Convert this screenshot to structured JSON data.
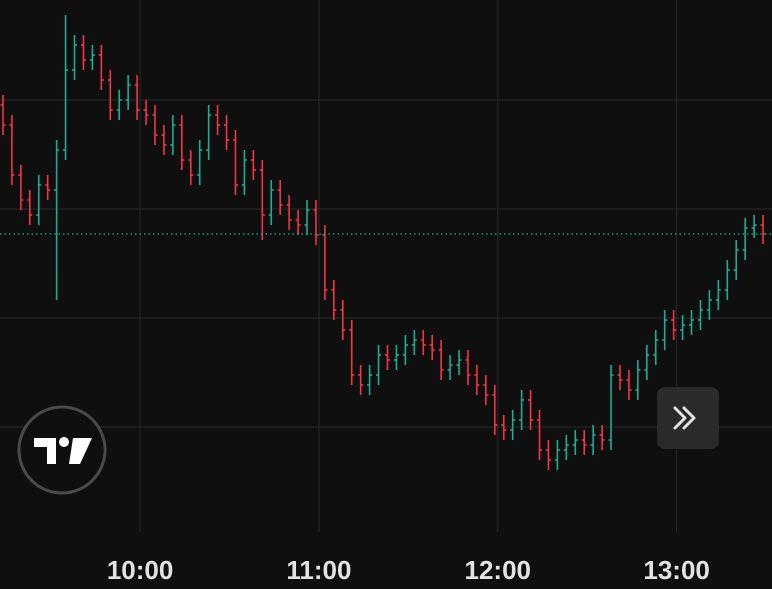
{
  "chart_data": {
    "type": "ohlc",
    "x": [
      554,
      557,
      560,
      563,
      566,
      569,
      572,
      575,
      578,
      581,
      584,
      587,
      590,
      593,
      596,
      599,
      602,
      605,
      608,
      611,
      614,
      617,
      620,
      623,
      626,
      629,
      632,
      635,
      638,
      641,
      644,
      647,
      650,
      653,
      656,
      659,
      662,
      665,
      668,
      671,
      674,
      677,
      680,
      683,
      686,
      689,
      692,
      695,
      698,
      701,
      704,
      707,
      710,
      713,
      716,
      719,
      722,
      725,
      728,
      731,
      734,
      737,
      740,
      743,
      746,
      749,
      752,
      755,
      758,
      761,
      764,
      767,
      770,
      773,
      776,
      779,
      782,
      785,
      788,
      791,
      794,
      797,
      800,
      803,
      806,
      809
    ],
    "open": [
      44,
      42,
      37,
      34.5,
      33,
      36,
      35.5,
      39.5,
      47.5,
      50,
      48.5,
      49,
      46.5,
      43.5,
      44.5,
      46,
      43.5,
      43,
      41,
      40,
      42,
      38.5,
      37,
      39.5,
      43,
      42,
      40.5,
      36,
      38.5,
      37.5,
      33,
      35.5,
      34,
      32.5,
      32,
      33.5,
      31,
      25.5,
      23.5,
      21.5,
      17,
      16,
      17,
      19,
      18.5,
      19,
      20,
      20.5,
      20,
      19.5,
      17.5,
      18,
      18.5,
      17,
      16,
      15,
      12,
      11.5,
      12.5,
      14.5,
      12.5,
      9.5,
      8.5,
      9.5,
      10,
      10.5,
      10,
      11,
      10.5,
      17,
      16.5,
      15.5,
      17.5,
      19,
      20.5,
      22.5,
      21.5,
      22,
      22.5,
      23.5,
      24.5,
      25.5,
      27.5,
      29.5,
      31.7,
      32
    ],
    "high": [
      45,
      43,
      38,
      35.5,
      37,
      37,
      40.5,
      53,
      51,
      51,
      50,
      50,
      47.5,
      45.5,
      47,
      47,
      44.5,
      44,
      42,
      43,
      43,
      39.5,
      40.5,
      44,
      44,
      43,
      41.5,
      39.5,
      39.5,
      38.5,
      36.5,
      36.5,
      35,
      33.5,
      34.5,
      34.5,
      32,
      26.5,
      24.5,
      22.5,
      18,
      18,
      20,
      20,
      20,
      21,
      21.5,
      21.5,
      21,
      20.5,
      19,
      19.5,
      19.5,
      18,
      17,
      16,
      13,
      13.5,
      15.5,
      15.5,
      13.5,
      10.5,
      10.5,
      11,
      11.5,
      11.5,
      12,
      12,
      18,
      18,
      17.5,
      18.5,
      20,
      21.5,
      23.5,
      23.5,
      23,
      23.5,
      24.5,
      25.5,
      26.5,
      28.5,
      30.5,
      32.7,
      33,
      33
    ],
    "low": [
      41,
      36,
      33.5,
      32,
      32,
      34.5,
      24.5,
      38.5,
      46.5,
      47.5,
      47.5,
      45.5,
      42.5,
      42.5,
      43.5,
      42.5,
      42,
      40,
      39,
      39,
      37.5,
      36,
      36,
      38.5,
      41,
      39.5,
      35,
      35,
      36.5,
      30.5,
      32,
      33,
      31.5,
      31,
      31,
      30,
      24.5,
      22.5,
      20.5,
      16,
      15,
      15,
      16,
      17.5,
      17.5,
      18,
      19,
      19,
      18.5,
      16.5,
      16.5,
      17,
      16,
      15,
      14,
      11,
      10.5,
      10.5,
      11.5,
      11.5,
      8.5,
      7.5,
      7.5,
      8.5,
      9,
      9,
      9,
      9.5,
      9.5,
      15.5,
      14.5,
      14.5,
      16.5,
      18,
      19.5,
      20.5,
      20.5,
      21,
      21.5,
      22.5,
      23.5,
      24.5,
      26.5,
      28.5,
      30.7,
      30.1
    ],
    "close": [
      42,
      37,
      34.5,
      33,
      36,
      35.5,
      39.5,
      47.5,
      50,
      48.5,
      49,
      46.5,
      43.5,
      44.5,
      46,
      43.5,
      43,
      41,
      40,
      42,
      38.5,
      37,
      39.5,
      43,
      42,
      40.5,
      36,
      38.5,
      37.5,
      33,
      35.5,
      34,
      32.5,
      32,
      33.5,
      31,
      25.5,
      23.5,
      21.5,
      17,
      16,
      17,
      19,
      18.5,
      19,
      20,
      20.5,
      20,
      19.5,
      17.5,
      18,
      18.5,
      17,
      16,
      15,
      12,
      11.5,
      12.5,
      14.5,
      12.5,
      9.5,
      8.5,
      9.5,
      10,
      10.5,
      10,
      11,
      10.5,
      17,
      16.5,
      15.5,
      17.5,
      19,
      20.5,
      22.5,
      21.5,
      22,
      22.5,
      23.5,
      24.5,
      25.5,
      27.5,
      29.5,
      31.7,
      32,
      31.1
    ],
    "up_color": "#22ab94",
    "down_color": "#f23645",
    "xlim": [
      553,
      812
    ],
    "xticks": [
      {
        "value": 600,
        "label": "10:00"
      },
      {
        "value": 660,
        "label": "11:00"
      },
      {
        "value": 720,
        "label": "12:00"
      },
      {
        "value": 780,
        "label": "13:00"
      }
    ],
    "ylim": [
      0,
      54.5
    ],
    "ygrid": [
      11.8,
      22.7,
      33.6,
      44.5
    ],
    "grid": true
  }
}
